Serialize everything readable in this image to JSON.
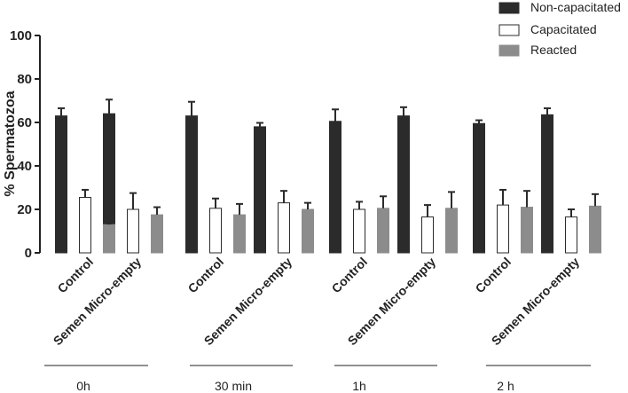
{
  "chart_data": {
    "type": "bar",
    "title": "",
    "ylabel": "% Spermatozoa",
    "xlabel": "",
    "ylim": [
      0,
      100
    ],
    "yticks": [
      0,
      20,
      40,
      60,
      80,
      100
    ],
    "categories": [
      "Control",
      "Semen Micro-empty",
      "Control",
      "Semen Micro-empty",
      "Control",
      "Semen Micro-empty",
      "Control",
      "Semen Micro-empty"
    ],
    "groups": [
      {
        "label": "0h",
        "categories": [
          0,
          1
        ]
      },
      {
        "label": "30 min",
        "categories": [
          2,
          3
        ]
      },
      {
        "label": "1h",
        "categories": [
          4,
          5
        ]
      },
      {
        "label": "2 h",
        "categories": [
          6,
          7
        ]
      }
    ],
    "legend_position": "top-right",
    "series": [
      {
        "name": "Non-capacitated",
        "color": "#2b2b2b",
        "stroke": "#2b2b2b",
        "values": [
          63,
          64,
          63,
          58,
          60.5,
          63,
          59.5,
          63.5
        ],
        "errors": [
          3.5,
          6.5,
          6.5,
          1.8,
          5.5,
          4,
          1.5,
          3
        ]
      },
      {
        "name": "Capacitated",
        "color": "#ffffff",
        "stroke": "#2b2b2b",
        "values": [
          25.5,
          20,
          20.5,
          23,
          20,
          16.5,
          22,
          16.5
        ],
        "errors": [
          3.5,
          7.5,
          4.5,
          5.5,
          3.5,
          5.5,
          7,
          3.5
        ]
      },
      {
        "name": "Reacted",
        "color": "#8c8c8c",
        "stroke": "#8c8c8c",
        "values": [
          13,
          17.5,
          17.5,
          20,
          20.5,
          20.5,
          21,
          21.5
        ],
        "errors": [
          0.5,
          3.5,
          5,
          3,
          5.5,
          7.5,
          7.5,
          5.5
        ]
      }
    ]
  }
}
